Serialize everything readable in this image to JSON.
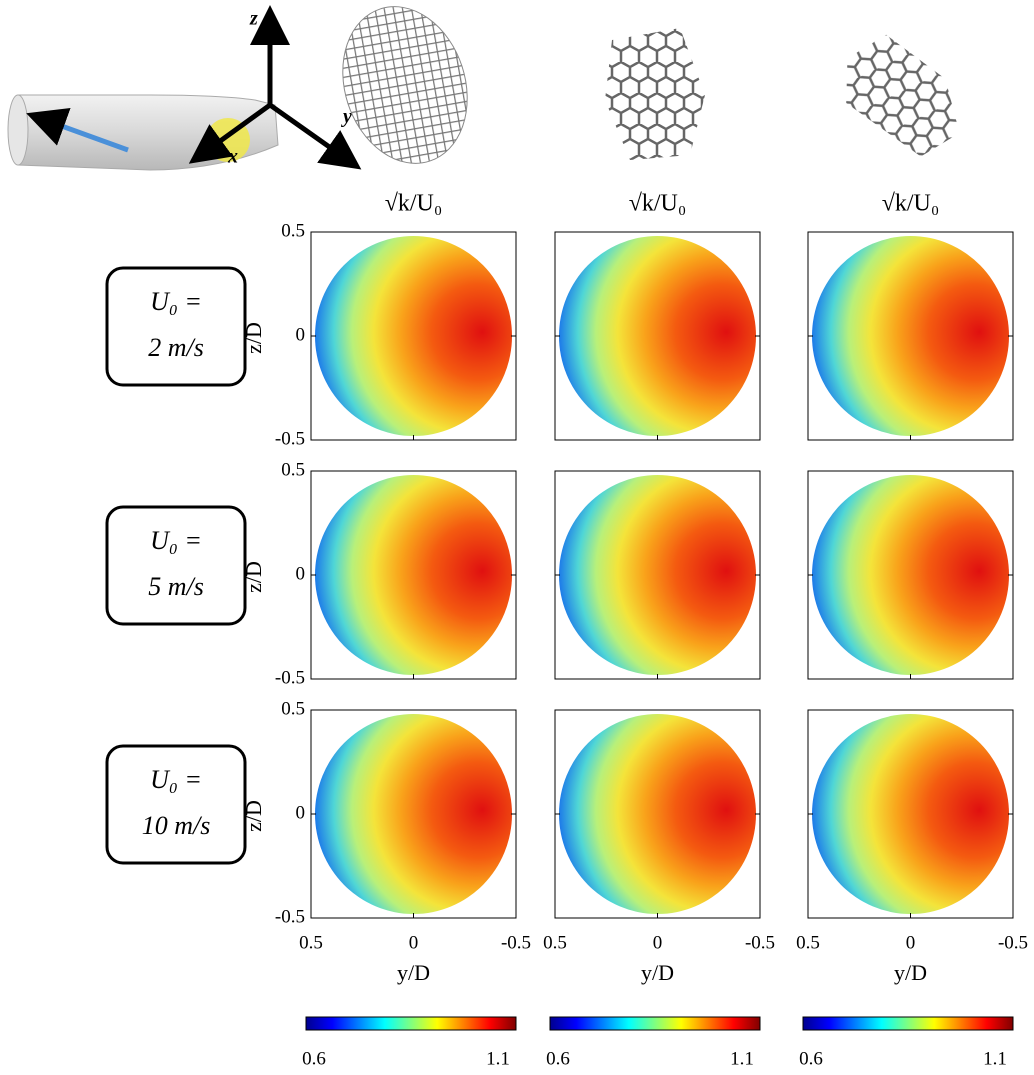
{
  "schematic": {
    "axis_z": "z",
    "axis_y": "y",
    "axis_x": "x"
  },
  "columns": [
    {
      "title": "√k/U₀"
    },
    {
      "title": "√k/U₀"
    },
    {
      "title": "√k/U₀"
    }
  ],
  "rows": [
    {
      "line1": "U₀ =",
      "line2": "2 m/s"
    },
    {
      "line1": "U₀ =",
      "line2": "5 m/s"
    },
    {
      "line1": "U₀ =",
      "line2": "10 m/s"
    }
  ],
  "axes": {
    "xlabel": "y/D",
    "ylabel": "z/D",
    "xlim": [
      0.5,
      -0.5
    ],
    "ylim": [
      -0.5,
      0.5
    ],
    "xticks": [
      0.5,
      0,
      -0.5
    ],
    "yticks": [
      0.5,
      0,
      -0.5
    ]
  },
  "colorbar": {
    "lim": [
      0.6,
      1.1
    ],
    "ticks": [
      0.6,
      1.1
    ]
  }
}
